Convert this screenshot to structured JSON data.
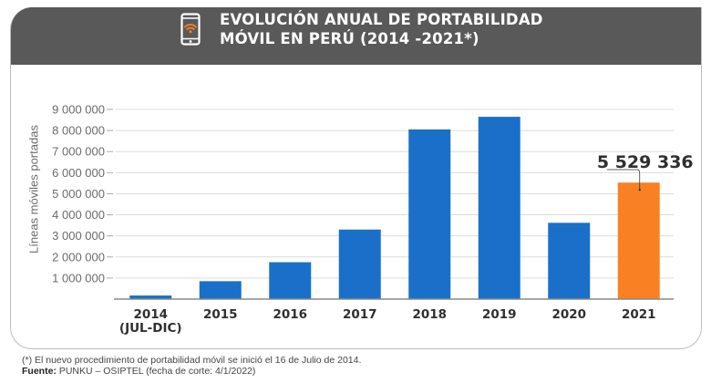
{
  "header": {
    "title_line1": "EVOLUCIÓN ANUAL DE PORTABILIDAD",
    "title_line2": "MÓVIL EN PERÚ (2014 -2021*)",
    "icon": "smartphone-wifi-icon"
  },
  "colors": {
    "header_bg": "#5a5959",
    "bar_blue": "#1a70c8",
    "bar_orange": "#f98123",
    "grid": "#dcdcdc",
    "axis": "#888888",
    "icon_accent": "#f98123"
  },
  "chart_data": {
    "type": "bar",
    "title": "EVOLUCIÓN ANUAL DE PORTABILIDAD MÓVIL EN PERÚ (2014 -2021*)",
    "xlabel": "",
    "ylabel": "Líneas móviles portadas",
    "categories": [
      [
        "2014",
        "(JUL-DIC)"
      ],
      [
        "2015"
      ],
      [
        "2016"
      ],
      [
        "2017"
      ],
      [
        "2018"
      ],
      [
        "2019"
      ],
      [
        "2020"
      ],
      [
        "2021"
      ]
    ],
    "values": [
      170000,
      850000,
      1750000,
      3300000,
      8050000,
      8650000,
      3620000,
      5529336
    ],
    "highlight_index": 7,
    "ylim": [
      0,
      9000000
    ],
    "yticks": [
      1000000,
      2000000,
      3000000,
      4000000,
      5000000,
      6000000,
      7000000,
      8000000,
      9000000
    ],
    "ytick_labels": [
      "1 000 000",
      "2 000 000",
      "3 000 000",
      "4 000 000",
      "5 000 000",
      "6 000 000",
      "7 000 000",
      "8 000 000",
      "9 000 000"
    ],
    "grid": true,
    "annotation": {
      "index": 7,
      "text": "5 529 336"
    }
  },
  "footer": {
    "note": "(*) El nuevo procedimiento de portabilidad móvil se inició el 16 de Julio de 2014.",
    "source_label": "Fuente:",
    "source_text": " PUNKU – OSIPTEL (fecha de corte: 4/1/2022)"
  }
}
